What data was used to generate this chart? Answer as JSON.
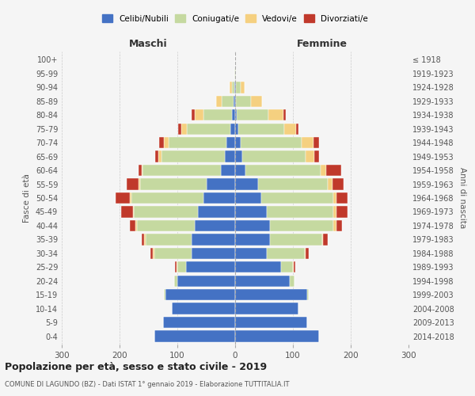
{
  "age_groups": [
    "0-4",
    "5-9",
    "10-14",
    "15-19",
    "20-24",
    "25-29",
    "30-34",
    "35-39",
    "40-44",
    "45-49",
    "50-54",
    "55-59",
    "60-64",
    "65-69",
    "70-74",
    "75-79",
    "80-84",
    "85-89",
    "90-94",
    "95-99",
    "100+"
  ],
  "birth_years": [
    "2014-2018",
    "2009-2013",
    "2004-2008",
    "1999-2003",
    "1994-1998",
    "1989-1993",
    "1984-1988",
    "1979-1983",
    "1974-1978",
    "1969-1973",
    "1964-1968",
    "1959-1963",
    "1954-1958",
    "1949-1953",
    "1944-1948",
    "1939-1943",
    "1934-1938",
    "1929-1933",
    "1924-1928",
    "1919-1923",
    "≤ 1918"
  ],
  "males": {
    "celibi": [
      140,
      125,
      110,
      120,
      100,
      85,
      75,
      75,
      70,
      65,
      55,
      50,
      25,
      18,
      15,
      8,
      5,
      3,
      1,
      0,
      0
    ],
    "coniugati": [
      0,
      0,
      0,
      3,
      5,
      15,
      65,
      80,
      100,
      110,
      125,
      115,
      135,
      110,
      100,
      75,
      50,
      20,
      5,
      1,
      0
    ],
    "vedovi": [
      0,
      0,
      0,
      0,
      0,
      2,
      2,
      2,
      2,
      2,
      2,
      2,
      2,
      5,
      8,
      10,
      15,
      10,
      3,
      0,
      0
    ],
    "divorziati": [
      0,
      0,
      0,
      0,
      0,
      2,
      5,
      5,
      10,
      20,
      25,
      20,
      5,
      5,
      8,
      5,
      5,
      0,
      0,
      0,
      0
    ]
  },
  "females": {
    "nubili": [
      145,
      125,
      110,
      125,
      95,
      80,
      55,
      60,
      60,
      55,
      45,
      40,
      18,
      12,
      10,
      5,
      3,
      2,
      1,
      0,
      0
    ],
    "coniugate": [
      0,
      0,
      0,
      3,
      8,
      20,
      65,
      90,
      110,
      115,
      125,
      120,
      130,
      110,
      105,
      80,
      55,
      25,
      8,
      1,
      0
    ],
    "vedove": [
      0,
      0,
      0,
      0,
      0,
      2,
      2,
      2,
      5,
      5,
      5,
      8,
      10,
      15,
      20,
      20,
      25,
      20,
      8,
      1,
      0
    ],
    "divorziate": [
      0,
      0,
      0,
      0,
      0,
      2,
      5,
      8,
      10,
      20,
      20,
      20,
      25,
      8,
      10,
      5,
      5,
      0,
      0,
      0,
      0
    ]
  },
  "color_celibi": "#4472c4",
  "color_coniugati": "#c5d9a0",
  "color_vedovi": "#f5d080",
  "color_divorziati": "#c0392b",
  "title_main": "Popolazione per età, sesso e stato civile - 2019",
  "title_sub": "COMUNE DI LAGUNDO (BZ) - Dati ISTAT 1° gennaio 2019 - Elaborazione TUTTITALIA.IT",
  "xlabel_left": "Maschi",
  "xlabel_right": "Femmine",
  "ylabel_left": "Fasce di età",
  "ylabel_right": "Anni di nascita",
  "xlim": 300,
  "legend_labels": [
    "Celibi/Nubili",
    "Coniugati/e",
    "Vedovi/e",
    "Divorziati/e"
  ],
  "background_color": "#f5f5f5"
}
